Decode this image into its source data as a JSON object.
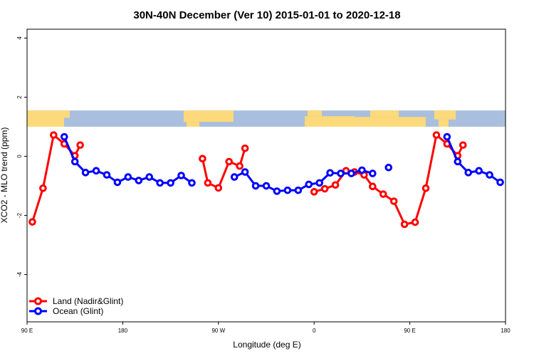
{
  "chart_data": {
    "type": "line",
    "title": "30N-40N December (Ver 10)   2015-01-01 to 2020-12-18",
    "xlabel": "Longitude (deg E)",
    "ylabel": "XCO2 - MLO trend (ppm)",
    "xlim": [
      90,
      540
    ],
    "ylim": [
      -5.6,
      4.3
    ],
    "x_ticks": [
      {
        "value": 90,
        "label": "90 E"
      },
      {
        "value": 180,
        "label": "180"
      },
      {
        "value": 270,
        "label": "90 W"
      },
      {
        "value": 360,
        "label": "0"
      },
      {
        "value": 450,
        "label": "90 E"
      },
      {
        "value": 540,
        "label": "180"
      }
    ],
    "y_ticks": [
      {
        "value": 4,
        "label": "4"
      },
      {
        "value": 2,
        "label": "2"
      },
      {
        "value": 0,
        "label": "0"
      },
      {
        "value": -2,
        "label": "-2"
      },
      {
        "value": -4,
        "label": "-4"
      }
    ],
    "legend_position": "bottom-left",
    "map_strip": {
      "y_range": [
        1.0,
        1.55
      ],
      "ocean_color": "#a9bfdd",
      "land_color": "#fcd97a"
    },
    "series": [
      {
        "name": "Land (Nadir&Glint)",
        "color": "#ff0000",
        "segments": [
          [
            [
              95,
              -2.22
            ],
            [
              105,
              -1.08
            ],
            [
              115,
              0.72
            ],
            [
              125,
              0.42
            ],
            [
              135,
              0.02
            ],
            [
              140,
              0.38
            ]
          ],
          [
            [
              255,
              -0.08
            ],
            [
              260,
              -0.9
            ],
            [
              270,
              -1.07
            ],
            [
              280,
              -0.18
            ],
            [
              290,
              -0.33
            ],
            [
              295,
              0.27
            ]
          ],
          [
            [
              360,
              -1.2
            ],
            [
              370,
              -1.1
            ],
            [
              380,
              -0.97
            ],
            [
              390,
              -0.49
            ],
            [
              398,
              -0.53
            ],
            [
              407,
              -0.63
            ],
            [
              415,
              -1.02
            ],
            [
              425,
              -1.28
            ],
            [
              435,
              -1.52
            ],
            [
              445,
              -2.3
            ],
            [
              455,
              -2.23
            ],
            [
              465,
              -1.08
            ],
            [
              475,
              0.72
            ],
            [
              485,
              0.42
            ],
            [
              495,
              0.02
            ],
            [
              500,
              0.38
            ]
          ]
        ]
      },
      {
        "name": "Ocean (Glint)",
        "color": "#0000ff",
        "segments": [
          [
            [
              125,
              0.66
            ],
            [
              135,
              -0.18
            ],
            [
              145,
              -0.55
            ],
            [
              155,
              -0.49
            ],
            [
              165,
              -0.63
            ],
            [
              175,
              -0.88
            ],
            [
              185,
              -0.7
            ],
            [
              195,
              -0.82
            ],
            [
              205,
              -0.7
            ],
            [
              215,
              -0.9
            ],
            [
              225,
              -0.9
            ],
            [
              235,
              -0.65
            ],
            [
              245,
              -0.9
            ]
          ],
          [
            [
              285,
              -0.7
            ],
            [
              295,
              -0.53
            ],
            [
              305,
              -1.0
            ],
            [
              315,
              -1.0
            ],
            [
              325,
              -1.18
            ],
            [
              335,
              -1.15
            ],
            [
              345,
              -1.15
            ],
            [
              355,
              -0.95
            ],
            [
              365,
              -0.9
            ],
            [
              375,
              -0.56
            ],
            [
              385,
              -0.58
            ],
            [
              395,
              -0.58
            ],
            [
              405,
              -0.47
            ],
            [
              415,
              -0.58
            ]
          ],
          [
            [
              430,
              -0.38
            ]
          ],
          [
            [
              485,
              0.66
            ],
            [
              495,
              -0.18
            ],
            [
              505,
              -0.55
            ],
            [
              515,
              -0.49
            ],
            [
              525,
              -0.63
            ],
            [
              535,
              -0.88
            ]
          ]
        ]
      }
    ]
  }
}
